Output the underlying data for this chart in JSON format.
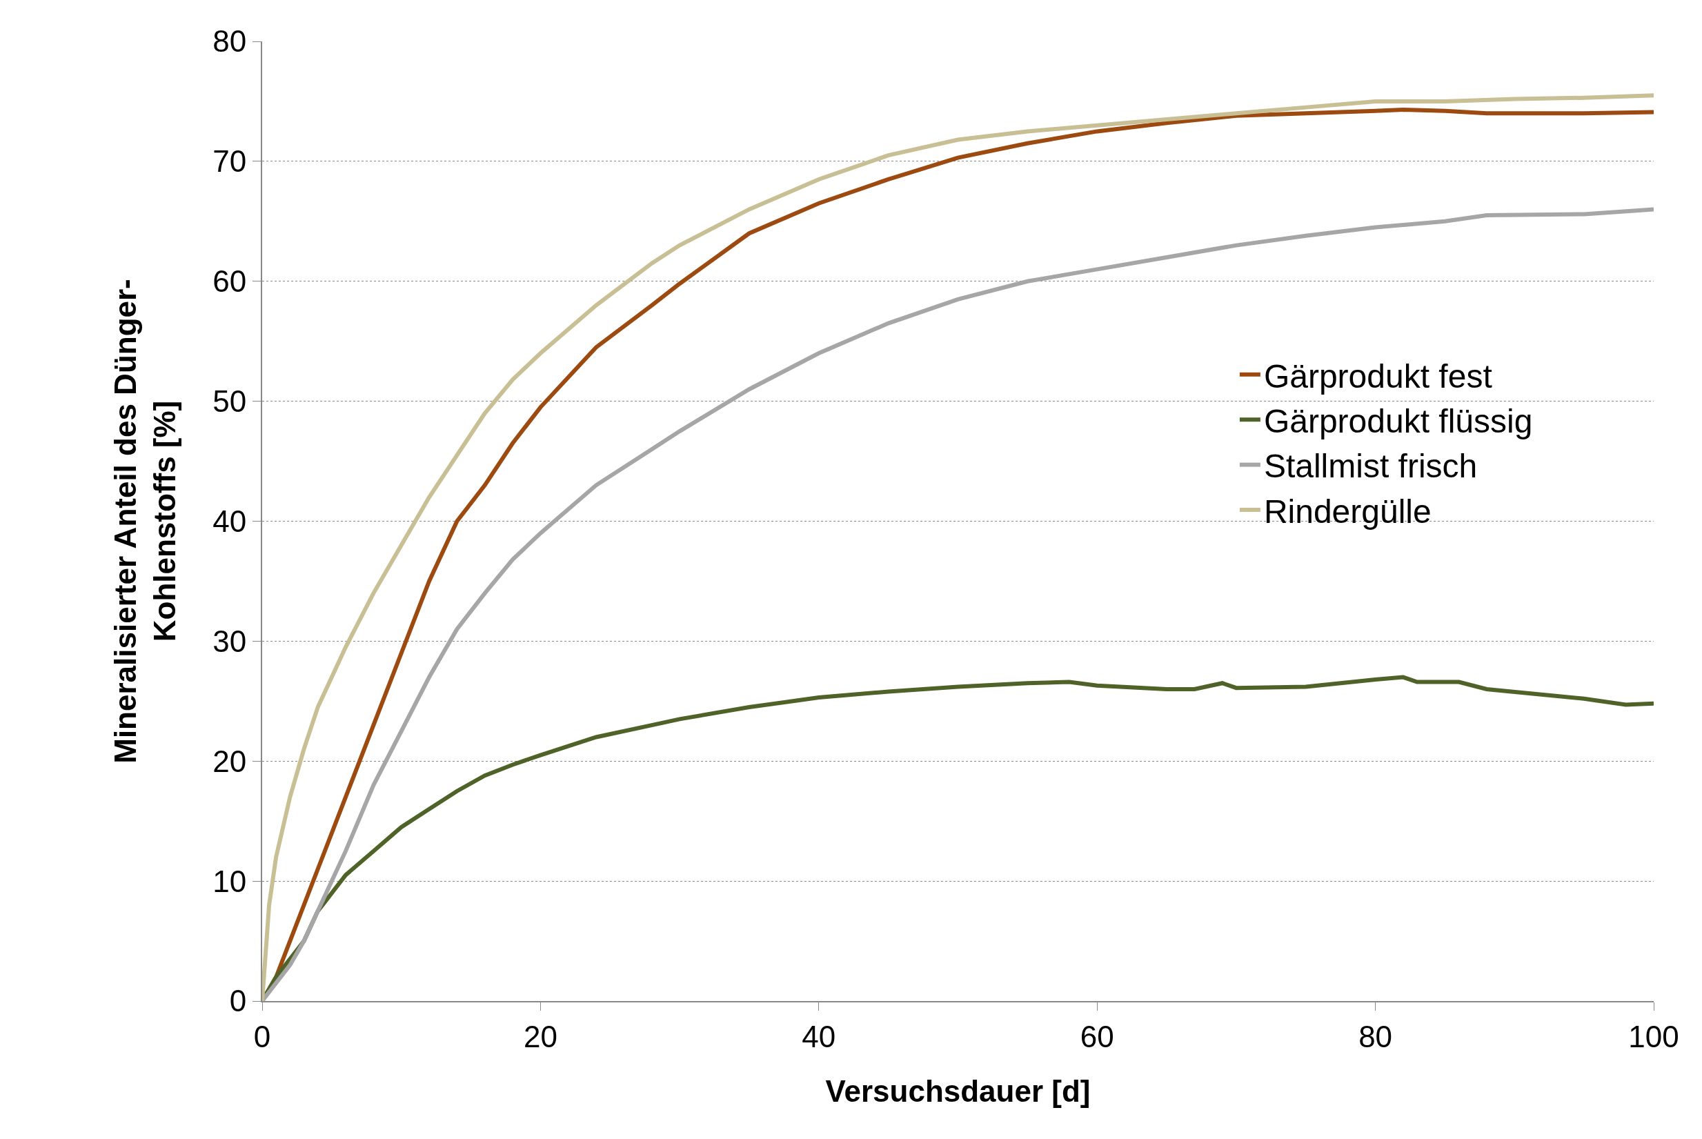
{
  "chart_data": {
    "type": "line",
    "xlabel": "Versuchsdauer [d]",
    "ylabel": "Mineralisierter Anteil des Dünger-Kohlenstoffs [%]",
    "xlim": [
      0,
      100
    ],
    "xticks": [
      0,
      20,
      40,
      60,
      80,
      100
    ],
    "ylim": [
      0,
      80
    ],
    "yticks": [
      0,
      10,
      20,
      30,
      40,
      50,
      60,
      70,
      80
    ],
    "grid": "y",
    "legend": "right",
    "marker": "none",
    "line_style": "solid",
    "series": [
      {
        "name": "Gärprodukt fest",
        "color": "#9c4a10",
        "x": [
          0,
          1,
          2,
          4,
          6,
          8,
          10,
          12,
          14,
          16,
          18,
          20,
          24,
          28,
          30,
          35,
          40,
          45,
          50,
          55,
          60,
          65,
          70,
          75,
          80,
          82,
          85,
          88,
          90,
          95,
          100
        ],
        "values": [
          0,
          2,
          5,
          11,
          17,
          23,
          29,
          35,
          40,
          43,
          46.5,
          49.5,
          54.5,
          58,
          59.8,
          64,
          66.5,
          68.5,
          70.3,
          71.5,
          72.5,
          73.2,
          73.8,
          74,
          74.2,
          74.3,
          74.2,
          74,
          74,
          74,
          74.1
        ]
      },
      {
        "name": "Gärprodukt flüssig",
        "color": "#4f6228",
        "x": [
          0,
          1,
          2,
          3,
          4,
          6,
          8,
          10,
          12,
          14,
          16,
          18,
          20,
          24,
          28,
          30,
          35,
          40,
          45,
          50,
          55,
          58,
          60,
          65,
          67,
          69,
          70,
          75,
          80,
          82,
          83,
          86,
          88,
          95,
          98,
          100
        ],
        "values": [
          0,
          2,
          3.5,
          5,
          7.5,
          10.5,
          12.5,
          14.5,
          16,
          17.5,
          18.8,
          19.7,
          20.5,
          22,
          23,
          23.5,
          24.5,
          25.3,
          25.8,
          26.2,
          26.5,
          26.6,
          26.3,
          26,
          26,
          26.5,
          26.1,
          26.2,
          26.8,
          27,
          26.6,
          26.6,
          26,
          25.2,
          24.7,
          24.8
        ]
      },
      {
        "name": "Stallmist frisch",
        "color": "#a6a6a6",
        "x": [
          0,
          2,
          3,
          4,
          6,
          8,
          10,
          12,
          14,
          16,
          18,
          20,
          24,
          28,
          30,
          35,
          40,
          45,
          50,
          55,
          60,
          65,
          70,
          75,
          80,
          85,
          88,
          95,
          100
        ],
        "values": [
          0,
          3,
          5,
          7.5,
          12.5,
          18,
          22.5,
          27,
          31,
          34,
          36.8,
          39,
          43,
          46,
          47.5,
          51,
          54,
          56.5,
          58.5,
          60,
          61,
          62,
          63,
          63.8,
          64.5,
          65,
          65.5,
          65.6,
          66
        ]
      },
      {
        "name": "Rindergülle",
        "color": "#c8bf95",
        "x": [
          0,
          0.5,
          1,
          2,
          3,
          4,
          6,
          8,
          10,
          12,
          14,
          16,
          18,
          20,
          24,
          28,
          30,
          35,
          40,
          45,
          50,
          55,
          60,
          65,
          70,
          75,
          80,
          85,
          90,
          95,
          100
        ],
        "values": [
          0,
          8,
          12,
          17,
          21,
          24.5,
          29.5,
          34,
          38,
          42,
          45.5,
          49,
          51.8,
          54,
          58,
          61.5,
          63,
          66,
          68.5,
          70.5,
          71.8,
          72.5,
          73,
          73.5,
          74,
          74.5,
          75,
          75,
          75.2,
          75.3,
          75.5
        ]
      }
    ]
  }
}
